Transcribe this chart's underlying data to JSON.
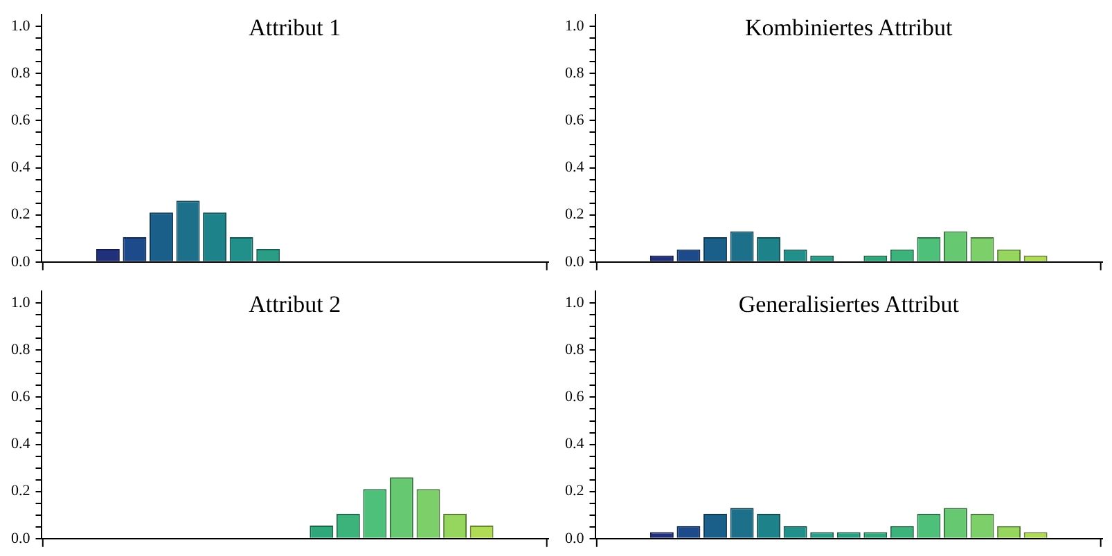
{
  "chart_data": [
    {
      "type": "bar",
      "title": "Attribut 1",
      "categories": [
        null,
        null,
        null,
        null,
        null,
        null,
        null,
        null,
        null,
        null,
        null,
        null,
        null,
        null,
        null,
        null,
        null,
        null,
        null
      ],
      "values": [
        0,
        0,
        0.055,
        0.105,
        0.21,
        0.26,
        0.21,
        0.105,
        0.055,
        0,
        0,
        0,
        0,
        0,
        0,
        0,
        0,
        0,
        0
      ],
      "colors": [
        "#2a1a5e",
        "#26256e",
        "#21307a",
        "#1d4a8a",
        "#1a5f8a",
        "#1c708a",
        "#1d828a",
        "#21908a",
        "#2a9d86",
        "#27a082",
        "#2ea87a",
        "#3bb37b",
        "#4ec07a",
        "#67c872",
        "#7dcf6a",
        "#96d65e",
        "#b0dc55",
        "#c8e04c",
        "#dfe346"
      ],
      "ylim": [
        0,
        1.05
      ],
      "yticks": [
        {
          "value": 0,
          "label": "0.0"
        },
        {
          "value": 0.05,
          "label": null
        },
        {
          "value": 0.1,
          "label": null
        },
        {
          "value": 0.15,
          "label": null
        },
        {
          "value": 0.2,
          "label": "0.2"
        },
        {
          "value": 0.25,
          "label": null
        },
        {
          "value": 0.3,
          "label": null
        },
        {
          "value": 0.35,
          "label": null
        },
        {
          "value": 0.4,
          "label": "0.4"
        },
        {
          "value": 0.45,
          "label": null
        },
        {
          "value": 0.5,
          "label": null
        },
        {
          "value": 0.55,
          "label": null
        },
        {
          "value": 0.6,
          "label": "0.6"
        },
        {
          "value": 0.65,
          "label": null
        },
        {
          "value": 0.7,
          "label": null
        },
        {
          "value": 0.75,
          "label": null
        },
        {
          "value": 0.8,
          "label": "0.8"
        },
        {
          "value": 0.85,
          "label": null
        },
        {
          "value": 0.9,
          "label": null
        },
        {
          "value": 0.95,
          "label": null
        },
        {
          "value": 1,
          "label": "1.0"
        }
      ],
      "tick_labels": "y",
      "grid": false,
      "legend": false
    },
    {
      "type": "bar",
      "title": "Kombiniertes Attribut",
      "categories": [
        null,
        null,
        null,
        null,
        null,
        null,
        null,
        null,
        null,
        null,
        null,
        null,
        null,
        null,
        null,
        null,
        null,
        null,
        null
      ],
      "values": [
        0,
        0,
        0.027,
        0.053,
        0.105,
        0.13,
        0.105,
        0.053,
        0.027,
        0,
        0.027,
        0.053,
        0.105,
        0.13,
        0.105,
        0.053,
        0.027,
        0,
        0
      ],
      "colors": [
        "#2a1a5e",
        "#26256e",
        "#21307a",
        "#1d4a8a",
        "#1a5f8a",
        "#1c708a",
        "#1d828a",
        "#21908a",
        "#2a9d86",
        "#27a082",
        "#2ea87a",
        "#3bb37b",
        "#4ec07a",
        "#67c872",
        "#7dcf6a",
        "#96d65e",
        "#b0dc55",
        "#c8e04c",
        "#dfe346"
      ],
      "ylim": [
        0,
        1.05
      ],
      "yticks": [
        {
          "value": 0,
          "label": "0.0"
        },
        {
          "value": 0.05,
          "label": null
        },
        {
          "value": 0.1,
          "label": null
        },
        {
          "value": 0.15,
          "label": null
        },
        {
          "value": 0.2,
          "label": "0.2"
        },
        {
          "value": 0.25,
          "label": null
        },
        {
          "value": 0.3,
          "label": null
        },
        {
          "value": 0.35,
          "label": null
        },
        {
          "value": 0.4,
          "label": "0.4"
        },
        {
          "value": 0.45,
          "label": null
        },
        {
          "value": 0.5,
          "label": null
        },
        {
          "value": 0.55,
          "label": null
        },
        {
          "value": 0.6,
          "label": "0.6"
        },
        {
          "value": 0.65,
          "label": null
        },
        {
          "value": 0.7,
          "label": null
        },
        {
          "value": 0.75,
          "label": null
        },
        {
          "value": 0.8,
          "label": "0.8"
        },
        {
          "value": 0.85,
          "label": null
        },
        {
          "value": 0.9,
          "label": null
        },
        {
          "value": 0.95,
          "label": null
        },
        {
          "value": 1,
          "label": "1.0"
        }
      ],
      "tick_labels": "y",
      "grid": false,
      "legend": false
    },
    {
      "type": "bar",
      "title": "Attribut 2",
      "categories": [
        null,
        null,
        null,
        null,
        null,
        null,
        null,
        null,
        null,
        null,
        null,
        null,
        null,
        null,
        null,
        null,
        null,
        null,
        null
      ],
      "values": [
        0,
        0,
        0,
        0,
        0,
        0,
        0,
        0,
        0,
        0,
        0.055,
        0.105,
        0.21,
        0.26,
        0.21,
        0.105,
        0.055,
        0,
        0
      ],
      "colors": [
        "#2a1a5e",
        "#26256e",
        "#21307a",
        "#1d4a8a",
        "#1a5f8a",
        "#1c708a",
        "#1d828a",
        "#21908a",
        "#2a9d86",
        "#27a082",
        "#2ea87a",
        "#3bb37b",
        "#4ec07a",
        "#67c872",
        "#7dcf6a",
        "#96d65e",
        "#b0dc55",
        "#c8e04c",
        "#dfe346"
      ],
      "ylim": [
        0,
        1.05
      ],
      "yticks": [
        {
          "value": 0,
          "label": "0.0"
        },
        {
          "value": 0.05,
          "label": null
        },
        {
          "value": 0.1,
          "label": null
        },
        {
          "value": 0.15,
          "label": null
        },
        {
          "value": 0.2,
          "label": "0.2"
        },
        {
          "value": 0.25,
          "label": null
        },
        {
          "value": 0.3,
          "label": null
        },
        {
          "value": 0.35,
          "label": null
        },
        {
          "value": 0.4,
          "label": "0.4"
        },
        {
          "value": 0.45,
          "label": null
        },
        {
          "value": 0.5,
          "label": null
        },
        {
          "value": 0.55,
          "label": null
        },
        {
          "value": 0.6,
          "label": "0.6"
        },
        {
          "value": 0.65,
          "label": null
        },
        {
          "value": 0.7,
          "label": null
        },
        {
          "value": 0.75,
          "label": null
        },
        {
          "value": 0.8,
          "label": "0.8"
        },
        {
          "value": 0.85,
          "label": null
        },
        {
          "value": 0.9,
          "label": null
        },
        {
          "value": 0.95,
          "label": null
        },
        {
          "value": 1,
          "label": "1.0"
        }
      ],
      "tick_labels": "y",
      "grid": false,
      "legend": false
    },
    {
      "type": "bar",
      "title": "Generalisiertes Attribut",
      "categories": [
        null,
        null,
        null,
        null,
        null,
        null,
        null,
        null,
        null,
        null,
        null,
        null,
        null,
        null,
        null,
        null,
        null,
        null,
        null
      ],
      "values": [
        0,
        0,
        0.027,
        0.053,
        0.105,
        0.13,
        0.105,
        0.053,
        0.027,
        0.027,
        0.027,
        0.053,
        0.105,
        0.13,
        0.105,
        0.053,
        0.027,
        0,
        0
      ],
      "colors": [
        "#2a1a5e",
        "#26256e",
        "#21307a",
        "#1d4a8a",
        "#1a5f8a",
        "#1c708a",
        "#1d828a",
        "#21908a",
        "#2a9d86",
        "#27a082",
        "#2ea87a",
        "#3bb37b",
        "#4ec07a",
        "#67c872",
        "#7dcf6a",
        "#96d65e",
        "#b0dc55",
        "#c8e04c",
        "#dfe346"
      ],
      "ylim": [
        0,
        1.05
      ],
      "yticks": [
        {
          "value": 0,
          "label": "0.0"
        },
        {
          "value": 0.05,
          "label": null
        },
        {
          "value": 0.1,
          "label": null
        },
        {
          "value": 0.15,
          "label": null
        },
        {
          "value": 0.2,
          "label": "0.2"
        },
        {
          "value": 0.25,
          "label": null
        },
        {
          "value": 0.3,
          "label": null
        },
        {
          "value": 0.35,
          "label": null
        },
        {
          "value": 0.4,
          "label": "0.4"
        },
        {
          "value": 0.45,
          "label": null
        },
        {
          "value": 0.5,
          "label": null
        },
        {
          "value": 0.55,
          "label": null
        },
        {
          "value": 0.6,
          "label": "0.6"
        },
        {
          "value": 0.65,
          "label": null
        },
        {
          "value": 0.7,
          "label": null
        },
        {
          "value": 0.75,
          "label": null
        },
        {
          "value": 0.8,
          "label": "0.8"
        },
        {
          "value": 0.85,
          "label": null
        },
        {
          "value": 0.9,
          "label": null
        },
        {
          "value": 0.95,
          "label": null
        },
        {
          "value": 1,
          "label": "1.0"
        }
      ],
      "tick_labels": "y",
      "grid": false,
      "legend": false
    }
  ]
}
